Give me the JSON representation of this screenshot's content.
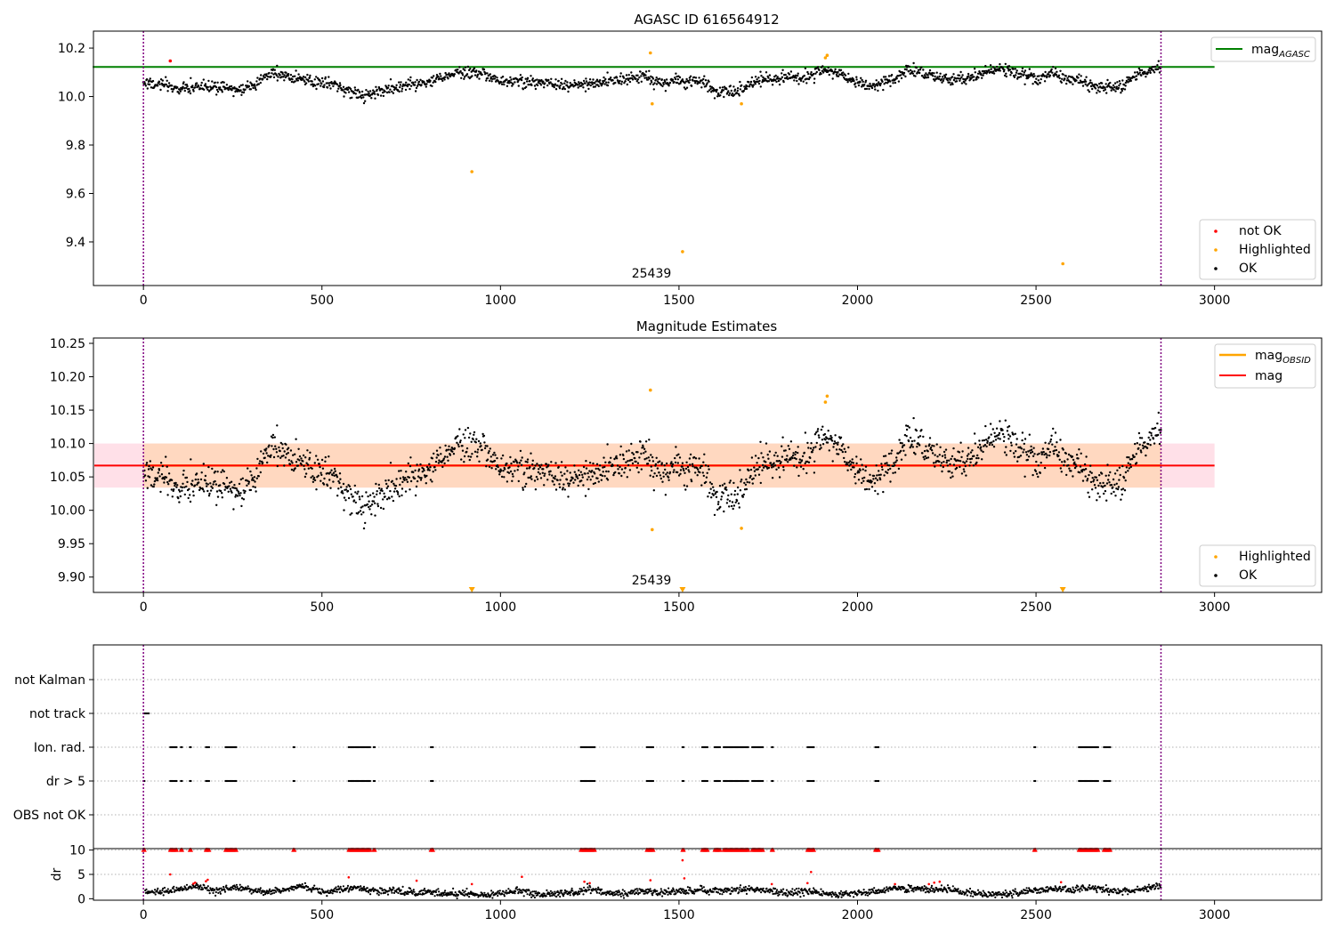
{
  "chart_data": [
    {
      "type": "scatter",
      "title": "AGASC ID 616564912",
      "xlim": [
        -140,
        3300
      ],
      "ylim": [
        9.22,
        10.27
      ],
      "xticks": [
        "0",
        "500",
        "1000",
        "1500",
        "2000",
        "2500",
        "3000"
      ],
      "xtick_values": [
        0,
        500,
        1000,
        1500,
        2000,
        2500,
        3000
      ],
      "yticks": [
        "9.4",
        "9.6",
        "9.8",
        "10.0",
        "10.2"
      ],
      "ytick_values": [
        9.4,
        9.6,
        9.8,
        10.0,
        10.2
      ],
      "vlines": [
        0,
        2850
      ],
      "vline_color": "#800080",
      "annotation": {
        "text": "25439",
        "x": 1420,
        "y": 9.25
      },
      "hline": {
        "label": "mag",
        "label_sub": "AGASC",
        "value": 10.122,
        "color": "#008000",
        "x_range": [
          0,
          3000
        ]
      },
      "legend": {
        "placement": "lower-right",
        "entries": [
          {
            "label": "not OK",
            "color": "#ff0000"
          },
          {
            "label": "Highlighted",
            "color": "#ffa500"
          },
          {
            "label": "OK",
            "color": "#000000"
          }
        ]
      },
      "series": [
        {
          "name": "OK",
          "color": "#000000",
          "trend": "mag_trend",
          "offset": 0
        },
        {
          "name": "not OK",
          "color": "#ff0000",
          "x": [
            75
          ],
          "y": [
            10.147
          ]
        },
        {
          "name": "Highlighted",
          "color": "#ffa500",
          "x": [
            920,
            1420,
            1425,
            1510,
            1675,
            1910,
            1915,
            2575
          ],
          "y": [
            9.69,
            10.18,
            9.97,
            9.36,
            9.97,
            10.16,
            10.17,
            9.31
          ]
        }
      ]
    },
    {
      "type": "scatter",
      "title": "Magnitude Estimates",
      "xlim": [
        -140,
        3300
      ],
      "ylim": [
        9.877,
        10.258
      ],
      "xticks": [
        "0",
        "500",
        "1000",
        "1500",
        "2000",
        "2500",
        "3000"
      ],
      "xtick_values": [
        0,
        500,
        1000,
        1500,
        2000,
        2500,
        3000
      ],
      "yticks": [
        "9.90",
        "9.95",
        "10.00",
        "10.05",
        "10.10",
        "10.15",
        "10.20",
        "10.25"
      ],
      "ytick_values": [
        9.9,
        9.95,
        10.0,
        10.05,
        10.1,
        10.15,
        10.2,
        10.25
      ],
      "vlines": [
        0,
        2850
      ],
      "vline_color": "#800080",
      "annotation": {
        "text": "25439",
        "x": 1420,
        "y": 9.889
      },
      "mag_line": {
        "label": "mag",
        "value": 10.067,
        "color": "#ff0000",
        "x_range": [
          -140,
          3000
        ]
      },
      "mag_obsid_line": {
        "label": "mag",
        "label_sub": "OBSID",
        "value": 10.067,
        "color": "#ffa500",
        "x_range": [
          0,
          2850
        ]
      },
      "band": {
        "low": 10.034,
        "high": 10.1,
        "outer_color": "#ffe0e8",
        "inner_color": "#ffd8c0"
      },
      "legend_lines": {
        "placement": "upper-right"
      },
      "legend_points": {
        "placement": "lower-right",
        "entries": [
          {
            "label": "Highlighted",
            "color": "#ffa500"
          },
          {
            "label": "OK",
            "color": "#000000"
          }
        ]
      },
      "series": [
        {
          "name": "OK",
          "color": "#000000",
          "trend": "mag_trend",
          "offset": 0
        },
        {
          "name": "Highlighted",
          "color": "#ffa500",
          "x": [
            1420,
            1425,
            1675,
            1910,
            1915
          ],
          "y": [
            10.18,
            9.971,
            9.973,
            10.162,
            10.171
          ]
        },
        {
          "name": "Highlighted (below range)",
          "color": "#ffa500",
          "marker": "triangle-down",
          "x": [
            920,
            1510,
            2575
          ],
          "y": [
            9.88,
            9.88,
            9.88
          ]
        }
      ]
    },
    {
      "type": "scatter",
      "title": "",
      "xlim": [
        -140,
        3300
      ],
      "categories": [
        "not Kalman",
        "not track",
        "Ion. rad.",
        "dr > 5",
        "OBS not OK"
      ],
      "xticks": [],
      "vlines": [
        0,
        2850
      ],
      "vline_color": "#800080",
      "flags": {
        "not track": [
          [
            0,
            15
          ]
        ],
        "Ion. rad.": [
          [
            75,
            95
          ],
          [
            105,
            110
          ],
          [
            130,
            135
          ],
          [
            175,
            185
          ],
          [
            230,
            260
          ],
          [
            420,
            425
          ],
          [
            575,
            635
          ],
          [
            645,
            650
          ],
          [
            805,
            812
          ],
          [
            1225,
            1265
          ],
          [
            1410,
            1430
          ],
          [
            1510,
            1515
          ],
          [
            1565,
            1580
          ],
          [
            1600,
            1615
          ],
          [
            1625,
            1695
          ],
          [
            1705,
            1735
          ],
          [
            1760,
            1765
          ],
          [
            1860,
            1880
          ],
          [
            2050,
            2060
          ],
          [
            2495,
            2500
          ],
          [
            2620,
            2675
          ],
          [
            2690,
            2710
          ]
        ],
        "dr > 5": [
          [
            0,
            5
          ],
          [
            75,
            95
          ],
          [
            105,
            110
          ],
          [
            130,
            135
          ],
          [
            175,
            185
          ],
          [
            230,
            260
          ],
          [
            420,
            425
          ],
          [
            575,
            635
          ],
          [
            645,
            650
          ],
          [
            805,
            812
          ],
          [
            1225,
            1265
          ],
          [
            1410,
            1430
          ],
          [
            1510,
            1515
          ],
          [
            1565,
            1580
          ],
          [
            1600,
            1615
          ],
          [
            1625,
            1695
          ],
          [
            1705,
            1735
          ],
          [
            1760,
            1765
          ],
          [
            1860,
            1880
          ],
          [
            2050,
            2060
          ],
          [
            2495,
            2500
          ],
          [
            2620,
            2675
          ],
          [
            2690,
            2710
          ]
        ]
      }
    },
    {
      "type": "scatter",
      "title": "",
      "xlim": [
        -140,
        3300
      ],
      "ylim": [
        -0.3,
        10.3
      ],
      "ylabel": "dr",
      "xticks": [
        "0",
        "500",
        "1000",
        "1500",
        "2000",
        "2500",
        "3000"
      ],
      "xtick_values": [
        0,
        500,
        1000,
        1500,
        2000,
        2500,
        3000
      ],
      "yticks": [
        "0",
        "5",
        "10"
      ],
      "ytick_values": [
        0,
        5,
        10
      ],
      "vlines": [
        0,
        2850
      ],
      "vline_color": "#800080",
      "clipped_value": 10,
      "series": [
        {
          "name": "dr",
          "color": "#000000",
          "trend": "dr_trend"
        },
        {
          "name": "dr > 5 (clipped)",
          "color": "#ff0000",
          "marker": "triangle-up",
          "same_as_flags": "dr > 5"
        },
        {
          "name": "dr outliers",
          "color": "#ff0000",
          "x": [
            75,
            140,
            145,
            175,
            180,
            575,
            765,
            920,
            1060,
            1235,
            1250,
            1420,
            1510,
            1515,
            1760,
            1860,
            1870,
            2105,
            2200,
            2215,
            2230,
            2570
          ],
          "y": [
            5.0,
            3.1,
            3.3,
            3.6,
            3.9,
            4.4,
            3.7,
            3.0,
            4.5,
            3.5,
            3.2,
            3.8,
            7.9,
            4.2,
            3.0,
            3.2,
            5.5,
            3.0,
            3.0,
            3.3,
            3.5,
            3.4
          ]
        }
      ]
    }
  ],
  "mag_trend": {
    "x": [
      0,
      50,
      100,
      150,
      200,
      250,
      300,
      330,
      360,
      390,
      420,
      470,
      520,
      560,
      600,
      640,
      680,
      720,
      760,
      800,
      840,
      880,
      920,
      960,
      1000,
      1050,
      1100,
      1150,
      1200,
      1250,
      1300,
      1350,
      1400,
      1430,
      1460,
      1500,
      1540,
      1570,
      1600,
      1630,
      1660,
      1700,
      1750,
      1800,
      1850,
      1880,
      1910,
      1950,
      2000,
      2030,
      2070,
      2100,
      2140,
      2180,
      2220,
      2260,
      2300,
      2340,
      2380,
      2420,
      2460,
      2500,
      2540,
      2580,
      2620,
      2660,
      2700,
      2740,
      2780,
      2820,
      2850
    ],
    "y": [
      10.06,
      10.05,
      10.03,
      10.04,
      10.04,
      10.03,
      10.04,
      10.07,
      10.1,
      10.09,
      10.08,
      10.06,
      10.06,
      10.03,
      10.01,
      10.01,
      10.03,
      10.04,
      10.05,
      10.06,
      10.08,
      10.1,
      10.1,
      10.09,
      10.06,
      10.06,
      10.06,
      10.05,
      10.05,
      10.05,
      10.06,
      10.07,
      10.09,
      10.06,
      10.06,
      10.06,
      10.06,
      10.06,
      10.02,
      10.02,
      10.02,
      10.05,
      10.07,
      10.08,
      10.08,
      10.09,
      10.11,
      10.09,
      10.06,
      10.04,
      10.06,
      10.07,
      10.11,
      10.1,
      10.08,
      10.07,
      10.08,
      10.09,
      10.11,
      10.11,
      10.09,
      10.07,
      10.1,
      10.08,
      10.07,
      10.04,
      10.04,
      10.04,
      10.09,
      10.11,
      10.12
    ],
    "scatter": 0.012
  },
  "dr_trend": {
    "x": [
      0,
      50,
      100,
      150,
      200,
      250,
      300,
      350,
      400,
      450,
      500,
      550,
      600,
      650,
      700,
      750,
      800,
      850,
      900,
      950,
      1000,
      1050,
      1100,
      1150,
      1200,
      1250,
      1300,
      1350,
      1400,
      1450,
      1500,
      1550,
      1600,
      1650,
      1700,
      1750,
      1800,
      1850,
      1900,
      1950,
      2000,
      2050,
      2100,
      2150,
      2200,
      2250,
      2300,
      2350,
      2400,
      2450,
      2500,
      2550,
      2600,
      2650,
      2700,
      2750,
      2800,
      2850
    ],
    "y": [
      1.5,
      1.4,
      2.0,
      2.5,
      1.5,
      2.3,
      1.8,
      1.4,
      2.0,
      2.5,
      1.5,
      2.0,
      2.3,
      1.5,
      1.8,
      1.2,
      1.5,
      1.0,
      1.2,
      0.8,
      1.0,
      1.8,
      0.8,
      1.0,
      1.2,
      2.0,
      1.2,
      1.0,
      1.8,
      1.2,
      1.5,
      1.8,
      1.5,
      1.8,
      2.0,
      1.6,
      1.2,
      1.6,
      1.2,
      0.8,
      1.2,
      1.5,
      2.0,
      2.2,
      1.8,
      2.0,
      1.2,
      0.8,
      1.0,
      1.2,
      1.8,
      2.0,
      1.7,
      2.2,
      1.8,
      1.4,
      2.0,
      2.5
    ],
    "scatter": 0.35
  }
}
